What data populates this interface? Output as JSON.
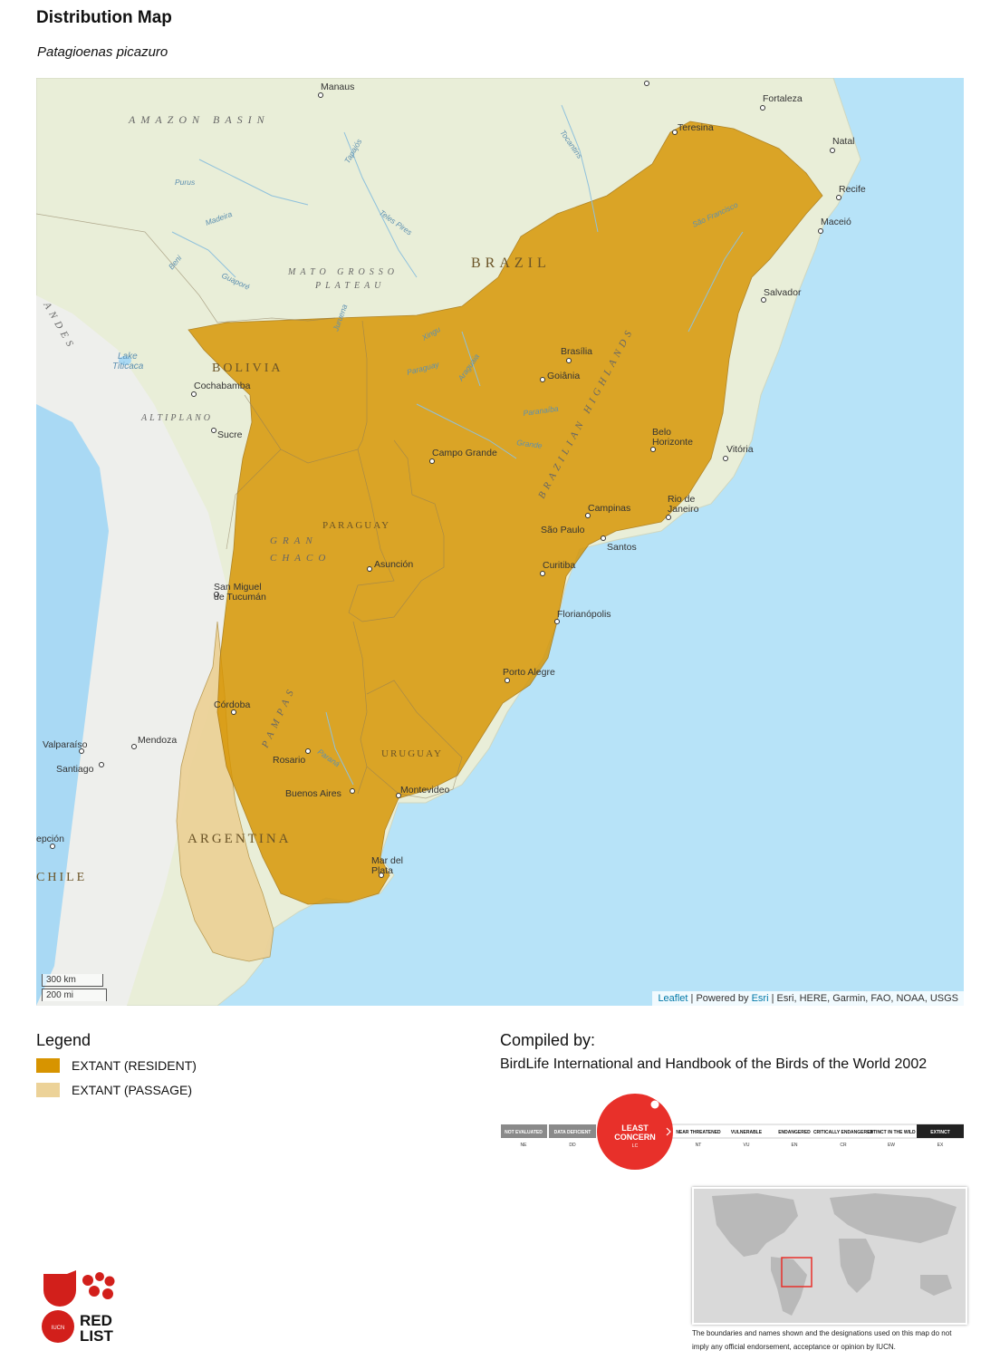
{
  "header": {
    "title": "Distribution Map",
    "species": "Patagioenas picazuro"
  },
  "map": {
    "water_color": "#aadaff",
    "land_color": "#e9eed8",
    "labels": {
      "amazon_basin": "AMAZON BASIN",
      "brazil": "BRAZIL",
      "bolivia": "BOLIVIA",
      "paraguay": "PARAGUAY",
      "uruguay": "URUGUAY",
      "argentina": "ARGENTINA",
      "chile": "CHILE",
      "mato_grosso": "MATO GROSSO",
      "plateau": "PLATEAU",
      "altiplano": "ALTIPLANO",
      "gran": "GRAN",
      "chaco": "CHACO",
      "pampas": "PAMPAS",
      "brazilian_highlands": "BRAZILIAN HIGHLANDS",
      "andes": "ANDES",
      "lake": "Lake",
      "titicaca": "Titicaca"
    },
    "cities": {
      "manaus": "Manaus",
      "fortaleza": "Fortaleza",
      "teresina": "Teresina",
      "natal": "Natal",
      "recife": "Recife",
      "maceio": "Maceió",
      "salvador": "Salvador",
      "brasilia": "Brasília",
      "goiania": "Goiânia",
      "belo": "Belo",
      "horizonte": "Horizonte",
      "vitoria": "Vitória",
      "campo_grande": "Campo Grande",
      "cochabamba": "Cochabamba",
      "sucre": "Sucre",
      "campinas": "Campinas",
      "rio_de": "Rio de",
      "janeiro": "Janeiro",
      "sao_paulo": "São Paulo",
      "santos": "Santos",
      "curitiba": "Curitiba",
      "asuncion": "Asunción",
      "san_miguel": "San Miguel",
      "de_tucuman": "de Tucumán",
      "florianopolis": "Florianópolis",
      "porto_alegre": "Porto Alegre",
      "cordoba": "Córdoba",
      "mendoza": "Mendoza",
      "valparaiso": "Valparaíso",
      "santiago": "Santiago",
      "rosario": "Rosario",
      "buenos_aires": "Buenos Aires",
      "montevideo": "Montevideo",
      "mar_del": "Mar del",
      "plata": "Plata",
      "concepcion": "epción"
    },
    "rivers": {
      "tocantins": "Tocantins",
      "tapajos": "Tapajós",
      "purus": "Purus",
      "madeira": "Madeira",
      "teles_pires": "Teles Pires",
      "beni": "Beni",
      "guapore": "Guaporé",
      "xingu": "Xingu",
      "sao_francisco": "São Francisco",
      "araguaia": "Araguaia",
      "paranaiba": "Paranaíba",
      "grande": "Grande",
      "parana": "Paraná",
      "paraguay_r": "Paraguay",
      "juruena": "Juruena"
    },
    "scale": {
      "km": "300 km",
      "mi": "200 mi"
    },
    "attribution": {
      "leaflet": "Leaflet",
      "powered": " | Powered by ",
      "esri": "Esri",
      "sources": " | Esri, HERE, Garmin, FAO, NOAA, USGS"
    }
  },
  "legend": {
    "title": "Legend",
    "items": [
      {
        "label": "EXTANT (RESIDENT)",
        "color": "#d79400"
      },
      {
        "label": "EXTANT (PASSAGE)",
        "color": "#ecd298"
      }
    ]
  },
  "compiled": {
    "title": "Compiled by:",
    "by": "BirdLife International and Handbook of the Birds of the World 2002"
  },
  "status_scale": {
    "ne": "NOT EVALUATED",
    "dd": "DATA DEFICIENT",
    "lc_line1": "LEAST",
    "lc_line2": "CONCERN",
    "lc_code": "LC",
    "nt": "NEAR THREATENED",
    "vu": "VULNERABLE",
    "en": "ENDANGERED",
    "cr": "CRITICALLY ENDANGERED",
    "ew": "EXTINCT IN THE WILD",
    "ex": "EXTINCT",
    "codes": {
      "ne": "NE",
      "dd": "DD",
      "nt": "NT",
      "vu": "VU",
      "en": "EN",
      "cr": "CR",
      "ew": "EW",
      "ex": "EX"
    },
    "lc_color": "#e8302a"
  },
  "disclaimer": "The boundaries and names shown and the designations used on this map do not imply any official endorsement, acceptance or opinion by IUCN.",
  "logo": {
    "red": "RED",
    "list": "LIST",
    "iucn": "IUCN",
    "color": "#d21f1b"
  }
}
